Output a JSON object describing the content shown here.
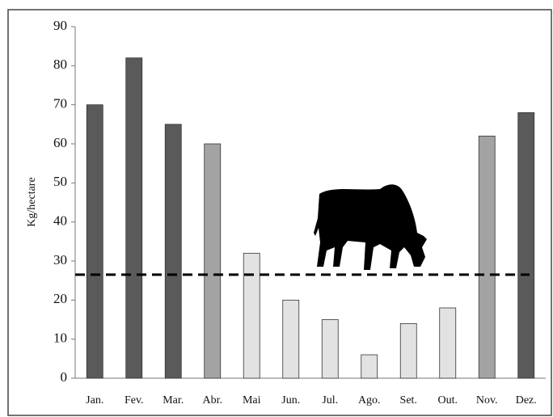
{
  "chart_data": {
    "type": "bar",
    "y_label": "Kg/hectare",
    "categories": [
      "Jan.",
      "Fev.",
      "Mar.",
      "Abr.",
      "Mai",
      "Jun.",
      "Jul.",
      "Ago.",
      "Set.",
      "Out.",
      "Nov.",
      "Dez."
    ],
    "values": [
      70,
      82,
      65,
      60,
      32,
      20,
      15,
      6,
      14,
      18,
      62,
      68
    ],
    "colors": [
      "#5a5a5a",
      "#5a5a5a",
      "#5a5a5a",
      "#a3a3a3",
      "#e2e2e2",
      "#e2e2e2",
      "#e2e2e2",
      "#e2e2e2",
      "#e2e2e2",
      "#e2e2e2",
      "#a3a3a3",
      "#5a5a5a"
    ],
    "reference_line": 26.5,
    "ylim": [
      0,
      90
    ],
    "yticks": [
      0,
      10,
      20,
      30,
      40,
      50,
      60,
      70,
      80,
      90
    ],
    "grid": false
  }
}
